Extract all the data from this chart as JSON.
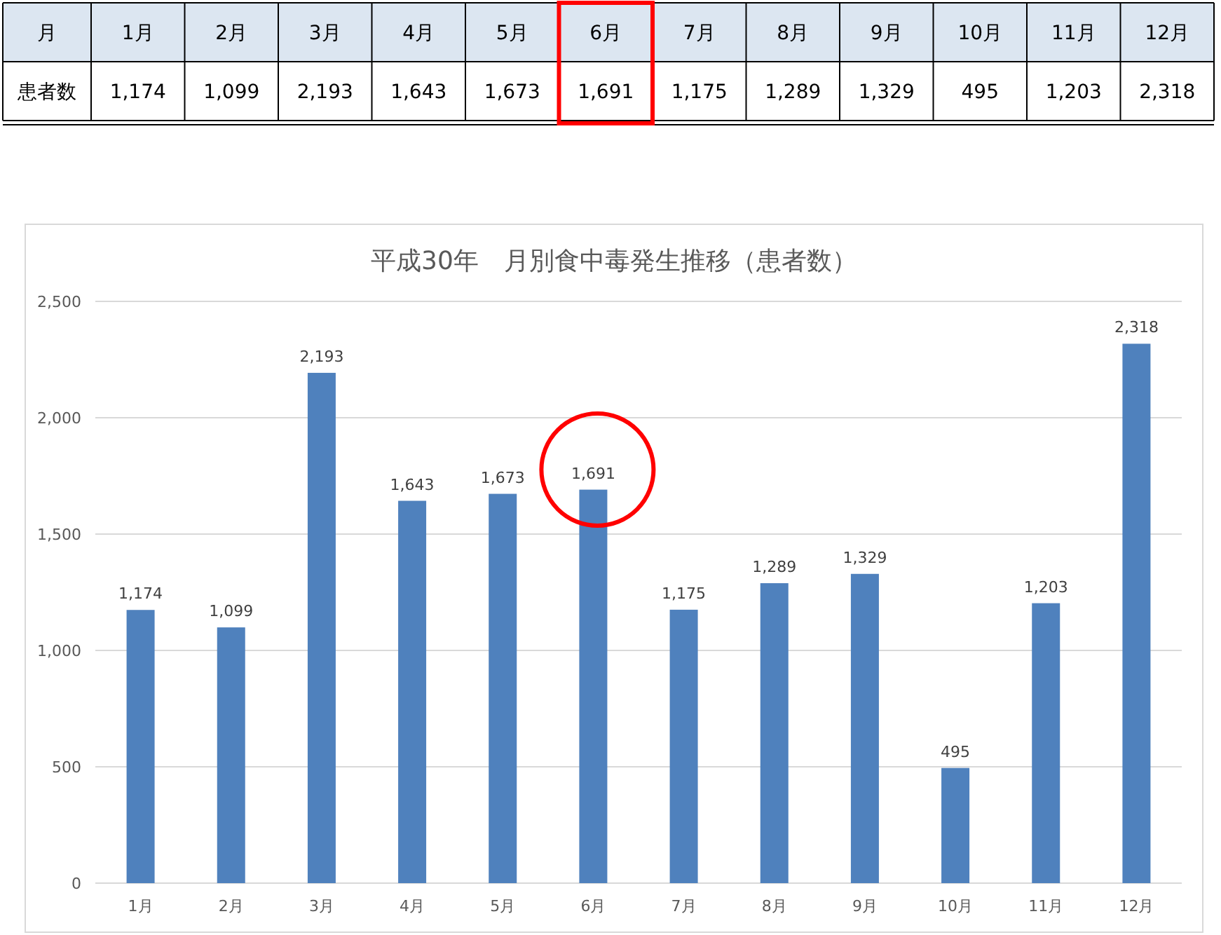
{
  "chart_data": {
    "type": "bar",
    "title": "平成30年　月別食中毒発生推移（患者数）",
    "categories": [
      "1月",
      "2月",
      "3月",
      "4月",
      "5月",
      "6月",
      "7月",
      "8月",
      "9月",
      "10月",
      "11月",
      "12月"
    ],
    "values": [
      1174,
      1099,
      2193,
      1643,
      1673,
      1691,
      1175,
      1289,
      1329,
      495,
      1203,
      2318
    ],
    "value_labels": [
      "1,174",
      "1,099",
      "2,193",
      "1,643",
      "1,673",
      "1,691",
      "1,175",
      "1,289",
      "1,329",
      "495",
      "1,203",
      "2,318"
    ],
    "color": "#4f81bd",
    "ylim": [
      0,
      2500
    ],
    "yticks": [
      0,
      {
        "value": 500,
        "label": "500"
      },
      {
        "value": 1000,
        "label": "1,000"
      },
      {
        "value": 1500,
        "label": "1,500"
      },
      {
        "value": 2000,
        "label": "2,000"
      },
      {
        "value": 2500,
        "label": "2,500"
      }
    ],
    "grid": "y",
    "annotations": [
      "月",
      "患者数"
    ]
  }
}
